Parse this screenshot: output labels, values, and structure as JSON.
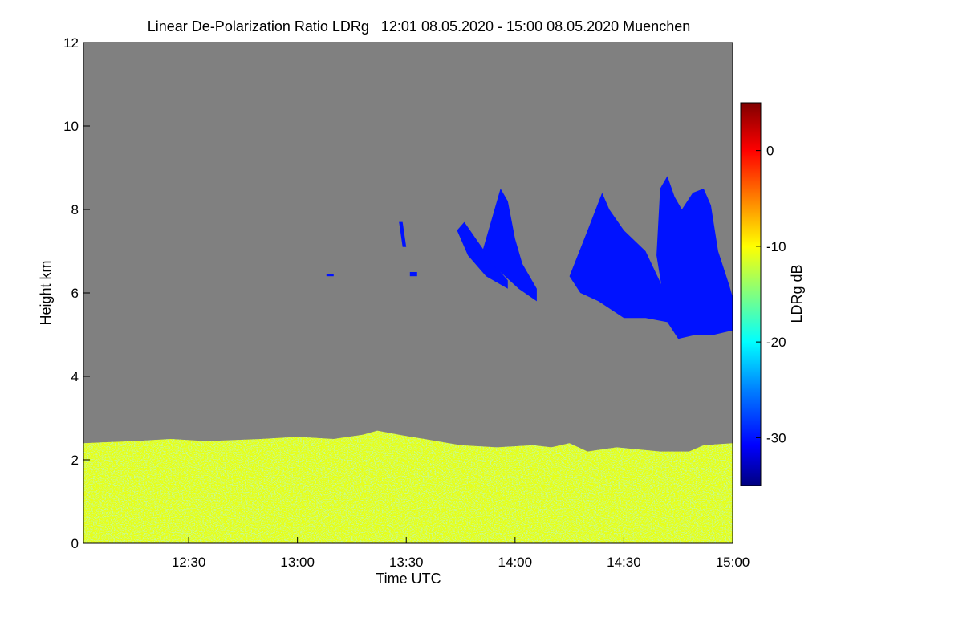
{
  "chart_data": {
    "type": "heatmap",
    "title": "Linear De-Polarization Ratio LDRg   12:01 08.05.2020 - 15:00 08.05.2020 Muenchen",
    "xlabel": "Time UTC",
    "ylabel": "Height km",
    "colorbar_label": "LDRg dB",
    "x_ticks": [
      "12:30",
      "13:00",
      "13:30",
      "14:00",
      "14:30",
      "15:00"
    ],
    "x_tick_minutes": [
      30,
      60,
      90,
      120,
      150,
      180
    ],
    "y_ticks": [
      "0",
      "2",
      "4",
      "6",
      "8",
      "10",
      "12"
    ],
    "colorbar_ticks": [
      "0",
      "-10",
      "-20",
      "-30"
    ],
    "xlim_minutes": [
      1,
      180
    ],
    "ylim": [
      0,
      12
    ],
    "clim": [
      -35,
      5
    ],
    "no_data_color": "#808080",
    "boundary_layer": {
      "ldr_range_db": [
        -18,
        -4
      ],
      "top_km": [
        [
          1,
          2.4
        ],
        [
          15,
          2.45
        ],
        [
          25,
          2.5
        ],
        [
          35,
          2.45
        ],
        [
          50,
          2.5
        ],
        [
          60,
          2.55
        ],
        [
          70,
          2.5
        ],
        [
          78,
          2.6
        ],
        [
          82,
          2.7
        ],
        [
          88,
          2.6
        ],
        [
          95,
          2.5
        ],
        [
          105,
          2.35
        ],
        [
          115,
          2.3
        ],
        [
          125,
          2.35
        ],
        [
          130,
          2.3
        ],
        [
          135,
          2.4
        ],
        [
          140,
          2.2
        ],
        [
          148,
          2.3
        ],
        [
          160,
          2.2
        ],
        [
          168,
          2.2
        ],
        [
          172,
          2.35
        ],
        [
          180,
          2.4
        ]
      ]
    },
    "cirrus_clouds": {
      "ldr_db": -30,
      "polygons": [
        [
          [
            104,
            7.5
          ],
          [
            106,
            7.7
          ],
          [
            110,
            7.2
          ],
          [
            114,
            6.7
          ],
          [
            118,
            6.3
          ],
          [
            118,
            6.1
          ],
          [
            112,
            6.4
          ],
          [
            107,
            6.9
          ]
        ],
        [
          [
            111,
            7.0
          ],
          [
            116,
            8.5
          ],
          [
            118,
            8.2
          ],
          [
            120,
            7.3
          ],
          [
            122,
            6.7
          ],
          [
            126,
            6.1
          ],
          [
            126,
            5.8
          ],
          [
            121,
            6.1
          ],
          [
            116,
            6.5
          ],
          [
            112,
            6.8
          ]
        ],
        [
          [
            135,
            6.4
          ],
          [
            140,
            7.5
          ],
          [
            144,
            8.4
          ],
          [
            146,
            8.0
          ],
          [
            150,
            7.5
          ],
          [
            156,
            7.0
          ],
          [
            162,
            5.9
          ],
          [
            162,
            5.3
          ],
          [
            156,
            5.4
          ],
          [
            150,
            5.4
          ],
          [
            143,
            5.8
          ],
          [
            138,
            6.0
          ]
        ],
        [
          [
            159,
            6.9
          ],
          [
            160,
            8.5
          ],
          [
            162,
            8.8
          ],
          [
            164,
            8.3
          ],
          [
            166,
            8.0
          ],
          [
            169,
            8.4
          ],
          [
            172,
            8.5
          ],
          [
            174,
            8.1
          ],
          [
            176,
            7.0
          ],
          [
            179,
            6.2
          ],
          [
            180,
            5.9
          ],
          [
            180,
            5.1
          ],
          [
            175,
            5.0
          ],
          [
            170,
            5.0
          ],
          [
            165,
            4.9
          ],
          [
            162,
            5.3
          ]
        ],
        [
          [
            91,
            6.5
          ],
          [
            93,
            6.5
          ],
          [
            93,
            6.4
          ],
          [
            91,
            6.4
          ]
        ],
        [
          [
            88,
            7.7
          ],
          [
            89,
            7.7
          ],
          [
            90,
            7.1
          ],
          [
            89,
            7.1
          ]
        ],
        [
          [
            68,
            6.45
          ],
          [
            70,
            6.45
          ],
          [
            70,
            6.4
          ],
          [
            68,
            6.4
          ]
        ]
      ]
    }
  }
}
